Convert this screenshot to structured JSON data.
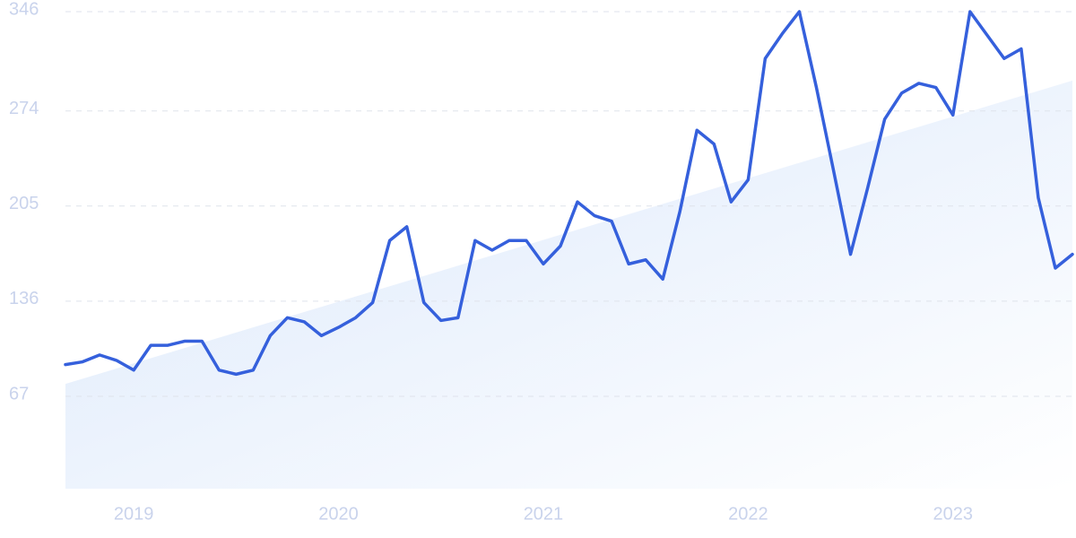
{
  "chart_data": {
    "type": "line",
    "categories": [
      null,
      null,
      null,
      null,
      "2019",
      null,
      null,
      null,
      null,
      null,
      null,
      null,
      null,
      null,
      null,
      null,
      "2020",
      null,
      null,
      null,
      null,
      null,
      null,
      null,
      null,
      null,
      null,
      null,
      "2021",
      null,
      null,
      null,
      null,
      null,
      null,
      null,
      null,
      null,
      null,
      null,
      "2022",
      null,
      null,
      null,
      null,
      null,
      null,
      null,
      null,
      null,
      null,
      null,
      "2023",
      null,
      null,
      null,
      null,
      null,
      null,
      null
    ],
    "values": [
      90,
      92,
      97,
      93,
      86,
      104,
      104,
      107,
      107,
      86,
      83,
      86,
      111,
      124,
      121,
      111,
      117,
      124,
      135,
      180,
      190,
      135,
      122,
      124,
      180,
      173,
      180,
      180,
      163,
      176,
      208,
      198,
      194,
      163,
      166,
      152,
      201,
      260,
      250,
      208,
      224,
      312,
      330,
      346,
      291,
      231,
      170,
      218,
      268,
      287,
      294,
      291,
      271,
      346,
      329,
      312,
      319,
      211,
      160,
      170
    ],
    "color": "#3560dc",
    "trend": {
      "start": 76,
      "end": 296,
      "color": "#dbe8fb"
    },
    "ylim": [
      0,
      346
    ],
    "yticks": [
      67,
      136,
      205,
      274,
      346
    ],
    "grid": true
  }
}
